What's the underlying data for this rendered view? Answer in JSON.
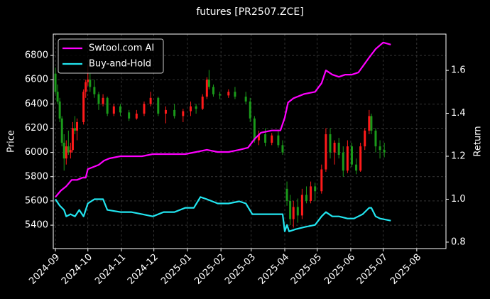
{
  "chart_data": {
    "type": "candlestick",
    "title": "futures [PR2507.ZCE]",
    "ylabel": "Price",
    "y2label": "Return",
    "xlim": [
      -2,
      361
    ],
    "xticks": [
      {
        "value": 0,
        "label": "2024-09"
      },
      {
        "value": 30,
        "label": "2024-10"
      },
      {
        "value": 61,
        "label": "2024-11"
      },
      {
        "value": 91,
        "label": "2024-12"
      },
      {
        "value": 122,
        "label": "2025-01"
      },
      {
        "value": 153,
        "label": "2025-02"
      },
      {
        "value": 181,
        "label": "2025-03"
      },
      {
        "value": 212,
        "label": "2025-04"
      },
      {
        "value": 242,
        "label": "2025-05"
      },
      {
        "value": 273,
        "label": "2025-06"
      },
      {
        "value": 303,
        "label": "2025-07"
      },
      {
        "value": 334,
        "label": "2025-08"
      }
    ],
    "ylim": [
      5207,
      6976
    ],
    "yticks": [
      5400,
      5600,
      5800,
      6000,
      6200,
      6400,
      6600,
      6800
    ],
    "y2lim": [
      0.77,
      1.769
    ],
    "y2ticks": [
      0.8,
      {
        "value": 1,
        "label": "1.0"
      },
      1.2,
      1.4,
      1.6
    ],
    "grid": true,
    "legend": "upper left",
    "up_color": "#ff1a1a",
    "down_color": "#1a9a1a",
    "candles": {
      "x": [
        0,
        2,
        4,
        6,
        8,
        10,
        12,
        14,
        16,
        18,
        20,
        26,
        28,
        30,
        32,
        36,
        40,
        44,
        48,
        54,
        60,
        68,
        75,
        82,
        88,
        95,
        102,
        110,
        118,
        125,
        130,
        136,
        140,
        142,
        146,
        152,
        160,
        166,
        176,
        180,
        184,
        188,
        194,
        200,
        206,
        210,
        214,
        217,
        220,
        224,
        228,
        232,
        236,
        240,
        246,
        250,
        254,
        258,
        262,
        266,
        270,
        274,
        278,
        282,
        286,
        290,
        292,
        296,
        300,
        304
      ],
      "open": [
        6650,
        6500,
        6420,
        6280,
        6080,
        5950,
        6050,
        6000,
        6020,
        6200,
        6180,
        6250,
        6500,
        6580,
        6600,
        6540,
        6480,
        6400,
        6450,
        6320,
        6380,
        6330,
        6280,
        6320,
        6400,
        6450,
        6320,
        6350,
        6300,
        6340,
        6380,
        6360,
        6460,
        6600,
        6540,
        6480,
        6470,
        6500,
        6460,
        6420,
        6280,
        6100,
        6150,
        6080,
        6140,
        6060,
        5700,
        5600,
        5450,
        5550,
        5480,
        5650,
        5600,
        5720,
        5680,
        5860,
        6150,
        6000,
        6080,
        6000,
        5850,
        6050,
        5900,
        5850,
        6050,
        6180,
        6300,
        6180,
        6050,
        6020
      ],
      "high": [
        6700,
        6560,
        6450,
        6300,
        6150,
        6100,
        6180,
        6080,
        6250,
        6300,
        6280,
        6520,
        6600,
        6720,
        6650,
        6600,
        6500,
        6480,
        6460,
        6400,
        6400,
        6350,
        6350,
        6420,
        6500,
        6460,
        6380,
        6400,
        6360,
        6420,
        6400,
        6480,
        6620,
        6680,
        6560,
        6500,
        6520,
        6540,
        6500,
        6450,
        6300,
        6180,
        6200,
        6160,
        6180,
        6100,
        5760,
        5650,
        5600,
        5620,
        5700,
        5720,
        5760,
        5750,
        5900,
        6200,
        6200,
        6100,
        6120,
        6050,
        6100,
        6080,
        5950,
        6080,
        6200,
        6350,
        6320,
        6200,
        6100,
        6080
      ],
      "low": [
        6480,
        6400,
        6250,
        6050,
        5850,
        5900,
        5980,
        5950,
        6000,
        6150,
        6100,
        6230,
        6450,
        6550,
        6500,
        6450,
        6350,
        6380,
        6300,
        6300,
        6300,
        6260,
        6270,
        6300,
        6380,
        6300,
        6240,
        6280,
        6250,
        6300,
        6320,
        6350,
        6440,
        6520,
        6460,
        6440,
        6450,
        6440,
        6400,
        6250,
        6080,
        6060,
        6050,
        6060,
        6040,
        5980,
        5560,
        5400,
        5380,
        5420,
        5450,
        5580,
        5580,
        5600,
        5660,
        5840,
        5950,
        5900,
        5950,
        5800,
        5830,
        5880,
        5820,
        5840,
        6020,
        6150,
        6150,
        6000,
        5950,
        5960
      ],
      "close": [
        6500,
        6420,
        6280,
        6080,
        5950,
        6050,
        6000,
        6020,
        6200,
        6180,
        6250,
        6500,
        6580,
        6600,
        6540,
        6480,
        6400,
        6450,
        6320,
        6380,
        6330,
        6280,
        6320,
        6400,
        6450,
        6320,
        6350,
        6300,
        6340,
        6380,
        6360,
        6460,
        6600,
        6540,
        6480,
        6470,
        6500,
        6460,
        6420,
        6280,
        6100,
        6150,
        6080,
        6140,
        6060,
        6000,
        5600,
        5450,
        5550,
        5480,
        5650,
        5600,
        5720,
        5680,
        5860,
        6150,
        6000,
        6080,
        5980,
        5850,
        6050,
        5900,
        5850,
        6050,
        6180,
        6300,
        6180,
        6050,
        6020,
        6000
      ]
    },
    "series": [
      {
        "name": "Swtool.com AI",
        "color": "#ff00ff",
        "axis": "y2",
        "x": [
          0,
          5,
          10,
          15,
          20,
          25,
          28,
          30,
          35,
          40,
          45,
          50,
          60,
          70,
          80,
          90,
          100,
          110,
          120,
          130,
          140,
          150,
          160,
          170,
          178,
          184,
          190,
          200,
          208,
          212,
          215,
          220,
          230,
          240,
          246,
          250,
          256,
          262,
          268,
          274,
          280,
          290,
          296,
          303,
          310
        ],
        "values": [
          1.01,
          1.04,
          1.06,
          1.09,
          1.09,
          1.1,
          1.1,
          1.14,
          1.15,
          1.16,
          1.18,
          1.19,
          1.2,
          1.2,
          1.2,
          1.21,
          1.21,
          1.21,
          1.21,
          1.22,
          1.23,
          1.22,
          1.22,
          1.23,
          1.24,
          1.28,
          1.31,
          1.32,
          1.32,
          1.38,
          1.45,
          1.47,
          1.49,
          1.5,
          1.54,
          1.6,
          1.58,
          1.57,
          1.58,
          1.58,
          1.59,
          1.66,
          1.7,
          1.73,
          1.72
        ]
      },
      {
        "name": "Buy-and-Hold",
        "color": "#22e5f0",
        "axis": "y2",
        "x": [
          0,
          4,
          8,
          10,
          14,
          18,
          22,
          26,
          30,
          36,
          44,
          48,
          60,
          70,
          80,
          90,
          100,
          110,
          120,
          128,
          134,
          140,
          150,
          160,
          170,
          176,
          182,
          190,
          200,
          210,
          212,
          214,
          216,
          222,
          230,
          240,
          246,
          250,
          256,
          262,
          270,
          276,
          284,
          290,
          292,
          296,
          300,
          310
        ],
        "values": [
          1,
          0.97,
          0.95,
          0.92,
          0.93,
          0.92,
          0.95,
          0.92,
          0.98,
          1,
          1,
          0.95,
          0.94,
          0.94,
          0.93,
          0.92,
          0.94,
          0.94,
          0.96,
          0.96,
          1.01,
          1,
          0.98,
          0.98,
          0.99,
          0.98,
          0.93,
          0.93,
          0.93,
          0.93,
          0.85,
          0.88,
          0.85,
          0.86,
          0.87,
          0.88,
          0.92,
          0.94,
          0.92,
          0.92,
          0.91,
          0.91,
          0.93,
          0.96,
          0.96,
          0.92,
          0.91,
          0.9
        ]
      }
    ]
  }
}
